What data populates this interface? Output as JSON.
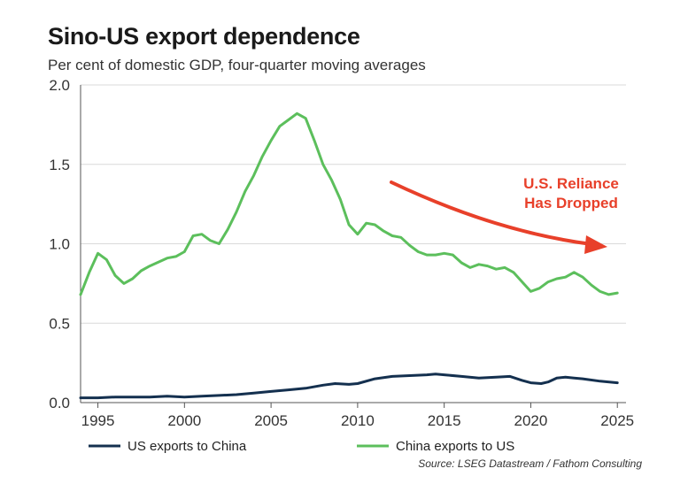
{
  "title": "Sino-US export dependence",
  "subtitle": "Per cent of domestic GDP, four-quarter moving averages",
  "source": "Source: LSEG Datastream / Fathom Consulting",
  "colors": {
    "china_exports": "#5cbf5c",
    "us_exports": "#14304f",
    "annotation": "#e8402a",
    "grid": "#d9d9d9"
  },
  "chart_data": {
    "type": "line",
    "title": "Sino-US export dependence",
    "subtitle": "Per cent of domestic GDP, four-quarter moving averages",
    "xlabel": "",
    "ylabel": "",
    "xlim": [
      1994,
      2025.5
    ],
    "ylim": [
      0,
      2.0
    ],
    "x_ticks": [
      "1995",
      "2000",
      "2005",
      "2010",
      "2015",
      "2020",
      "2025"
    ],
    "y_ticks": [
      "0.0",
      "0.5",
      "1.0",
      "1.5",
      "2.0"
    ],
    "grid": "horizontal",
    "legend_position": "bottom",
    "series": [
      {
        "name": "US exports to China",
        "color": "#14304f",
        "x": [
          1994,
          1995,
          1996,
          1997,
          1998,
          1999,
          2000,
          2001,
          2002,
          2003,
          2004,
          2005,
          2006,
          2007,
          2008,
          2008.7,
          2009.5,
          2010,
          2011,
          2012,
          2013,
          2014,
          2014.5,
          2015,
          2016,
          2017,
          2018,
          2018.8,
          2019.5,
          2020,
          2020.6,
          2021,
          2021.5,
          2022,
          2022.5,
          2023,
          2024,
          2025
        ],
        "y": [
          0.03,
          0.03,
          0.035,
          0.035,
          0.035,
          0.04,
          0.035,
          0.04,
          0.045,
          0.05,
          0.06,
          0.07,
          0.08,
          0.09,
          0.11,
          0.12,
          0.115,
          0.12,
          0.15,
          0.165,
          0.17,
          0.175,
          0.18,
          0.175,
          0.165,
          0.155,
          0.16,
          0.165,
          0.14,
          0.125,
          0.12,
          0.13,
          0.155,
          0.16,
          0.155,
          0.15,
          0.135,
          0.125
        ]
      },
      {
        "name": "China exports to US",
        "color": "#5cbf5c",
        "x": [
          1994,
          1994.5,
          1995,
          1995.5,
          1996,
          1996.5,
          1997,
          1997.5,
          1998,
          1999,
          1999.5,
          2000,
          2000.5,
          2001,
          2001.5,
          2002,
          2002.5,
          2003,
          2003.5,
          2004,
          2004.5,
          2005,
          2005.5,
          2006,
          2006.5,
          2007,
          2007.5,
          2008,
          2008.5,
          2009,
          2009.5,
          2010,
          2010.5,
          2011,
          2011.5,
          2012,
          2012.5,
          2013,
          2013.5,
          2014,
          2014.5,
          2015,
          2015.5,
          2016,
          2016.5,
          2017,
          2017.5,
          2018,
          2018.5,
          2019,
          2019.5,
          2020,
          2020.5,
          2021,
          2021.5,
          2022,
          2022.5,
          2023,
          2023.5,
          2024,
          2024.5,
          2025
        ],
        "y": [
          0.68,
          0.82,
          0.94,
          0.9,
          0.8,
          0.75,
          0.78,
          0.83,
          0.86,
          0.91,
          0.92,
          0.95,
          1.05,
          1.06,
          1.02,
          1.0,
          1.09,
          1.2,
          1.33,
          1.43,
          1.55,
          1.65,
          1.74,
          1.78,
          1.82,
          1.79,
          1.65,
          1.5,
          1.4,
          1.28,
          1.12,
          1.06,
          1.13,
          1.12,
          1.08,
          1.05,
          1.04,
          0.99,
          0.95,
          0.93,
          0.93,
          0.94,
          0.93,
          0.88,
          0.85,
          0.87,
          0.86,
          0.84,
          0.85,
          0.82,
          0.76,
          0.7,
          0.72,
          0.76,
          0.78,
          0.79,
          0.82,
          0.79,
          0.74,
          0.7,
          0.68,
          0.69
        ]
      }
    ],
    "annotations": [
      {
        "text_lines": [
          "U.S. Reliance",
          "Has Dropped"
        ],
        "color": "#e8402a"
      }
    ]
  }
}
